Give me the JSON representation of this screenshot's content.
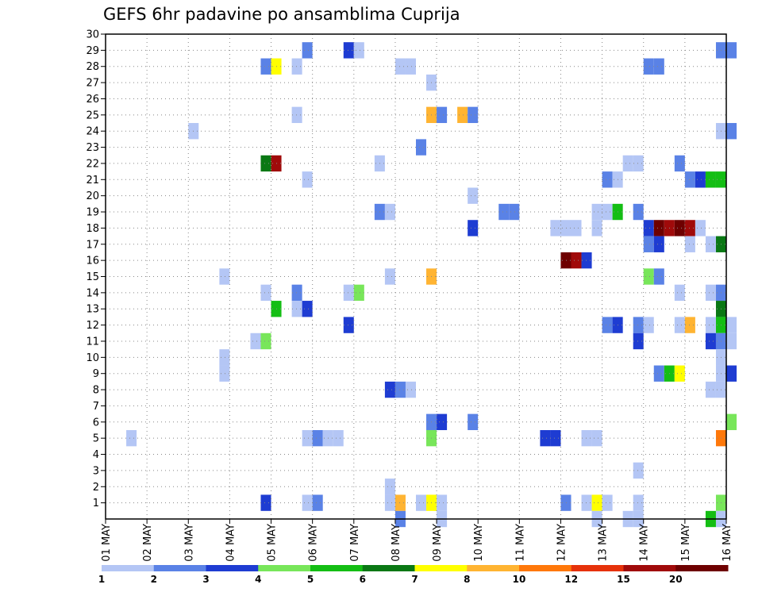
{
  "chart_data": {
    "type": "heatmap",
    "title": "GEFS 6hr padavine po ansamblima Cuprija",
    "xlabel": "",
    "ylabel": "",
    "x_ticks": [
      "01 MAY",
      "02 MAY",
      "03 MAY",
      "04 MAY",
      "05 MAY",
      "06 MAY",
      "07 MAY",
      "08 MAY",
      "09 MAY",
      "10 MAY",
      "11 MAY",
      "12 MAY",
      "13 MAY",
      "14 MAY",
      "15 MAY",
      "16 MAY"
    ],
    "y_ticks": [
      1,
      2,
      3,
      4,
      5,
      6,
      7,
      8,
      9,
      10,
      11,
      12,
      13,
      14,
      15,
      16,
      17,
      18,
      19,
      20,
      21,
      22,
      23,
      24,
      25,
      26,
      27,
      28,
      29,
      30
    ],
    "xlim_days": [
      1,
      16
    ],
    "ylim": [
      0,
      30
    ],
    "grid": true,
    "legend": {
      "placement": "bottom",
      "labels": [
        "1",
        "2",
        "3",
        "4",
        "5",
        "6",
        "7",
        "8",
        "10",
        "12",
        "15",
        "20"
      ],
      "colors": [
        "#b4c6f5",
        "#5a82e6",
        "#1e3cd2",
        "#78e65a",
        "#14be14",
        "#0a7814",
        "#ffff00",
        "#ffb432",
        "#ff780a",
        "#e6320a",
        "#a00a0a",
        "#6e0000"
      ]
    },
    "cells": [
      {
        "m": 29,
        "d": "05 MAY 18Z",
        "v": 2
      },
      {
        "m": 29,
        "d": "06 MAY 18Z",
        "v": 3
      },
      {
        "m": 29,
        "d": "07 MAY 00Z",
        "v": 1
      },
      {
        "m": 29,
        "d": "15 MAY 18Z",
        "v": 2
      },
      {
        "m": 29,
        "d": "16 MAY 00Z",
        "v": 2
      },
      {
        "m": 28,
        "d": "04 MAY 18Z",
        "v": 2
      },
      {
        "m": 28,
        "d": "05 MAY 00Z",
        "v": 7
      },
      {
        "m": 28,
        "d": "05 MAY 12Z",
        "v": 1
      },
      {
        "m": 28,
        "d": "08 MAY 00Z",
        "v": 1
      },
      {
        "m": 28,
        "d": "08 MAY 06Z",
        "v": 1
      },
      {
        "m": 28,
        "d": "14 MAY 00Z",
        "v": 2
      },
      {
        "m": 28,
        "d": "14 MAY 06Z",
        "v": 2
      },
      {
        "m": 27,
        "d": "08 MAY 18Z",
        "v": 1
      },
      {
        "m": 25,
        "d": "05 MAY 12Z",
        "v": 1
      },
      {
        "m": 25,
        "d": "08 MAY 18Z",
        "v": 8
      },
      {
        "m": 25,
        "d": "09 MAY 00Z",
        "v": 2
      },
      {
        "m": 25,
        "d": "09 MAY 12Z",
        "v": 8
      },
      {
        "m": 25,
        "d": "09 MAY 18Z",
        "v": 2
      },
      {
        "m": 24,
        "d": "03 MAY 00Z",
        "v": 1
      },
      {
        "m": 24,
        "d": "15 MAY 18Z",
        "v": 1
      },
      {
        "m": 24,
        "d": "16 MAY 00Z",
        "v": 2
      },
      {
        "m": 23,
        "d": "08 MAY 12Z",
        "v": 2
      },
      {
        "m": 22,
        "d": "04 MAY 18Z",
        "v": 6
      },
      {
        "m": 22,
        "d": "05 MAY 00Z",
        "v": 15
      },
      {
        "m": 22,
        "d": "07 MAY 12Z",
        "v": 1
      },
      {
        "m": 22,
        "d": "13 MAY 12Z",
        "v": 1
      },
      {
        "m": 22,
        "d": "13 MAY 18Z",
        "v": 1
      },
      {
        "m": 22,
        "d": "14 MAY 18Z",
        "v": 2
      },
      {
        "m": 21,
        "d": "05 MAY 18Z",
        "v": 1
      },
      {
        "m": 21,
        "d": "13 MAY 00Z",
        "v": 2
      },
      {
        "m": 21,
        "d": "13 MAY 06Z",
        "v": 1
      },
      {
        "m": 21,
        "d": "15 MAY 00Z",
        "v": 2
      },
      {
        "m": 21,
        "d": "15 MAY 06Z",
        "v": 3
      },
      {
        "m": 21,
        "d": "15 MAY 12Z",
        "v": 5
      },
      {
        "m": 21,
        "d": "15 MAY 18Z",
        "v": 5
      },
      {
        "m": 20,
        "d": "09 MAY 18Z",
        "v": 1
      },
      {
        "m": 19,
        "d": "07 MAY 12Z",
        "v": 2
      },
      {
        "m": 19,
        "d": "07 MAY 18Z",
        "v": 1
      },
      {
        "m": 19,
        "d": "10 MAY 12Z",
        "v": 2
      },
      {
        "m": 19,
        "d": "10 MAY 18Z",
        "v": 2
      },
      {
        "m": 19,
        "d": "12 MAY 18Z",
        "v": 1
      },
      {
        "m": 19,
        "d": "13 MAY 00Z",
        "v": 1
      },
      {
        "m": 19,
        "d": "13 MAY 06Z",
        "v": 5
      },
      {
        "m": 19,
        "d": "13 MAY 18Z",
        "v": 2
      },
      {
        "m": 18,
        "d": "09 MAY 18Z",
        "v": 3
      },
      {
        "m": 18,
        "d": "11 MAY 18Z",
        "v": 1
      },
      {
        "m": 18,
        "d": "12 MAY 00Z",
        "v": 1
      },
      {
        "m": 18,
        "d": "12 MAY 06Z",
        "v": 1
      },
      {
        "m": 18,
        "d": "12 MAY 18Z",
        "v": 1
      },
      {
        "m": 18,
        "d": "14 MAY 00Z",
        "v": 3
      },
      {
        "m": 18,
        "d": "14 MAY 06Z",
        "v": 20
      },
      {
        "m": 18,
        "d": "14 MAY 12Z",
        "v": 15
      },
      {
        "m": 18,
        "d": "14 MAY 18Z",
        "v": 20
      },
      {
        "m": 18,
        "d": "15 MAY 00Z",
        "v": 15
      },
      {
        "m": 18,
        "d": "15 MAY 06Z",
        "v": 1
      },
      {
        "m": 17,
        "d": "14 MAY 00Z",
        "v": 2
      },
      {
        "m": 17,
        "d": "14 MAY 06Z",
        "v": 3
      },
      {
        "m": 17,
        "d": "15 MAY 00Z",
        "v": 1
      },
      {
        "m": 17,
        "d": "15 MAY 12Z",
        "v": 1
      },
      {
        "m": 17,
        "d": "15 MAY 18Z",
        "v": 6
      },
      {
        "m": 16,
        "d": "12 MAY 00Z",
        "v": 20
      },
      {
        "m": 16,
        "d": "12 MAY 06Z",
        "v": 15
      },
      {
        "m": 16,
        "d": "12 MAY 12Z",
        "v": 3
      },
      {
        "m": 15,
        "d": "03 MAY 18Z",
        "v": 1
      },
      {
        "m": 15,
        "d": "07 MAY 18Z",
        "v": 1
      },
      {
        "m": 15,
        "d": "08 MAY 18Z",
        "v": 8
      },
      {
        "m": 15,
        "d": "14 MAY 00Z",
        "v": 4
      },
      {
        "m": 15,
        "d": "14 MAY 06Z",
        "v": 2
      },
      {
        "m": 14,
        "d": "04 MAY 18Z",
        "v": 1
      },
      {
        "m": 14,
        "d": "05 MAY 12Z",
        "v": 2
      },
      {
        "m": 14,
        "d": "06 MAY 18Z",
        "v": 1
      },
      {
        "m": 14,
        "d": "07 MAY 00Z",
        "v": 4
      },
      {
        "m": 14,
        "d": "14 MAY 18Z",
        "v": 1
      },
      {
        "m": 14,
        "d": "15 MAY 12Z",
        "v": 1
      },
      {
        "m": 14,
        "d": "15 MAY 18Z",
        "v": 2
      },
      {
        "m": 13,
        "d": "05 MAY 00Z",
        "v": 5
      },
      {
        "m": 13,
        "d": "05 MAY 12Z",
        "v": 1
      },
      {
        "m": 13,
        "d": "05 MAY 18Z",
        "v": 3
      },
      {
        "m": 13,
        "d": "15 MAY 18Z",
        "v": 6
      },
      {
        "m": 12,
        "d": "06 MAY 18Z",
        "v": 3
      },
      {
        "m": 12,
        "d": "13 MAY 00Z",
        "v": 2
      },
      {
        "m": 12,
        "d": "13 MAY 06Z",
        "v": 3
      },
      {
        "m": 12,
        "d": "13 MAY 18Z",
        "v": 2
      },
      {
        "m": 12,
        "d": "14 MAY 00Z",
        "v": 1
      },
      {
        "m": 12,
        "d": "14 MAY 18Z",
        "v": 1
      },
      {
        "m": 12,
        "d": "15 MAY 00Z",
        "v": 8
      },
      {
        "m": 12,
        "d": "15 MAY 12Z",
        "v": 1
      },
      {
        "m": 12,
        "d": "15 MAY 18Z",
        "v": 5
      },
      {
        "m": 12,
        "d": "16 MAY 00Z",
        "v": 1
      },
      {
        "m": 11,
        "d": "04 MAY 12Z",
        "v": 1
      },
      {
        "m": 11,
        "d": "04 MAY 18Z",
        "v": 4
      },
      {
        "m": 11,
        "d": "13 MAY 18Z",
        "v": 3
      },
      {
        "m": 11,
        "d": "15 MAY 12Z",
        "v": 3
      },
      {
        "m": 11,
        "d": "15 MAY 18Z",
        "v": 2
      },
      {
        "m": 11,
        "d": "16 MAY 00Z",
        "v": 1
      },
      {
        "m": 10,
        "d": "03 MAY 18Z",
        "v": 1
      },
      {
        "m": 10,
        "d": "15 MAY 18Z",
        "v": 1
      },
      {
        "m": 9,
        "d": "03 MAY 18Z",
        "v": 1
      },
      {
        "m": 9,
        "d": "14 MAY 06Z",
        "v": 2
      },
      {
        "m": 9,
        "d": "14 MAY 12Z",
        "v": 5
      },
      {
        "m": 9,
        "d": "14 MAY 18Z",
        "v": 7
      },
      {
        "m": 9,
        "d": "15 MAY 18Z",
        "v": 1
      },
      {
        "m": 9,
        "d": "16 MAY 00Z",
        "v": 3
      },
      {
        "m": 8,
        "d": "07 MAY 18Z",
        "v": 3
      },
      {
        "m": 8,
        "d": "08 MAY 00Z",
        "v": 2
      },
      {
        "m": 8,
        "d": "08 MAY 06Z",
        "v": 1
      },
      {
        "m": 8,
        "d": "15 MAY 12Z",
        "v": 1
      },
      {
        "m": 8,
        "d": "15 MAY 18Z",
        "v": 1
      },
      {
        "m": 6,
        "d": "08 MAY 18Z",
        "v": 2
      },
      {
        "m": 6,
        "d": "09 MAY 00Z",
        "v": 3
      },
      {
        "m": 6,
        "d": "09 MAY 18Z",
        "v": 2
      },
      {
        "m": 6,
        "d": "16 MAY 00Z",
        "v": 4
      },
      {
        "m": 5,
        "d": "01 MAY 12Z",
        "v": 1
      },
      {
        "m": 5,
        "d": "05 MAY 18Z",
        "v": 1
      },
      {
        "m": 5,
        "d": "06 MAY 00Z",
        "v": 2
      },
      {
        "m": 5,
        "d": "06 MAY 06Z",
        "v": 1
      },
      {
        "m": 5,
        "d": "06 MAY 12Z",
        "v": 1
      },
      {
        "m": 5,
        "d": "08 MAY 18Z",
        "v": 4
      },
      {
        "m": 5,
        "d": "11 MAY 12Z",
        "v": 3
      },
      {
        "m": 5,
        "d": "11 MAY 18Z",
        "v": 3
      },
      {
        "m": 5,
        "d": "12 MAY 12Z",
        "v": 1
      },
      {
        "m": 5,
        "d": "12 MAY 18Z",
        "v": 1
      },
      {
        "m": 5,
        "d": "15 MAY 18Z",
        "v": 10
      },
      {
        "m": 3,
        "d": "13 MAY 18Z",
        "v": 1
      },
      {
        "m": 2,
        "d": "07 MAY 18Z",
        "v": 1
      },
      {
        "m": 1,
        "d": "04 MAY 18Z",
        "v": 3
      },
      {
        "m": 1,
        "d": "05 MAY 18Z",
        "v": 1
      },
      {
        "m": 1,
        "d": "06 MAY 00Z",
        "v": 2
      },
      {
        "m": 1,
        "d": "07 MAY 18Z",
        "v": 1
      },
      {
        "m": 1,
        "d": "08 MAY 00Z",
        "v": 8
      },
      {
        "m": 1,
        "d": "08 MAY 12Z",
        "v": 1
      },
      {
        "m": 1,
        "d": "08 MAY 18Z",
        "v": 7
      },
      {
        "m": 1,
        "d": "09 MAY 00Z",
        "v": 1
      },
      {
        "m": 1,
        "d": "12 MAY 00Z",
        "v": 2
      },
      {
        "m": 1,
        "d": "12 MAY 12Z",
        "v": 1
      },
      {
        "m": 1,
        "d": "12 MAY 18Z",
        "v": 7
      },
      {
        "m": 1,
        "d": "13 MAY 00Z",
        "v": 1
      },
      {
        "m": 1,
        "d": "13 MAY 18Z",
        "v": 1
      },
      {
        "m": 1,
        "d": "15 MAY 18Z",
        "v": 4
      },
      {
        "m": 0,
        "d": "08 MAY 00Z",
        "v": 2
      },
      {
        "m": 0,
        "d": "09 MAY 00Z",
        "v": 1
      },
      {
        "m": 0,
        "d": "12 MAY 18Z",
        "v": 1
      },
      {
        "m": 0,
        "d": "13 MAY 12Z",
        "v": 1
      },
      {
        "m": 0,
        "d": "13 MAY 18Z",
        "v": 1
      },
      {
        "m": 0,
        "d": "15 MAY 12Z",
        "v": 5
      },
      {
        "m": 0,
        "d": "15 MAY 18Z",
        "v": 1
      }
    ]
  }
}
